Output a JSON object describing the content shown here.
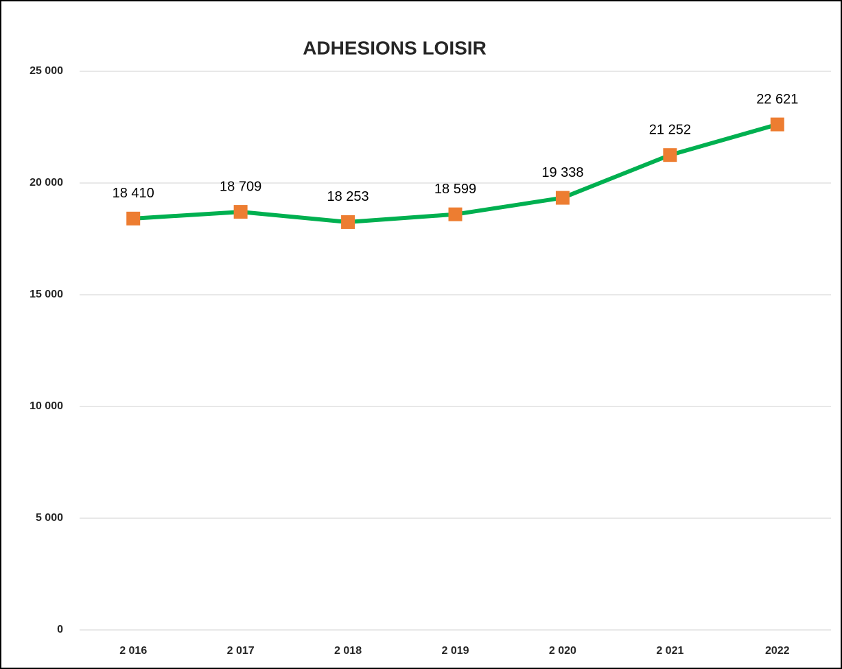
{
  "chart_data": {
    "type": "line",
    "title": "ADHESIONS LOISIR",
    "categories": [
      "2 016",
      "2 017",
      "2 018",
      "2 019",
      "2 020",
      "2 021",
      "2022"
    ],
    "series": [
      {
        "name": "Adhésions",
        "color": "#00b050",
        "marker_color": "#ed7d31",
        "values": [
          18410,
          18709,
          18253,
          18599,
          19338,
          21252,
          22621
        ],
        "value_labels": [
          "18 410",
          "18 709",
          "18 253",
          "18 599",
          "19 338",
          "21 252",
          "22 621"
        ]
      }
    ],
    "ylim": [
      0,
      25000
    ],
    "yticks": [
      0,
      {
        "value": 5000,
        "label": "5 000"
      },
      {
        "value": 10000,
        "label": "10 000"
      },
      {
        "value": 15000,
        "label": "15 000"
      },
      {
        "value": 20000,
        "label": "20 000"
      },
      {
        "value": 25000,
        "label": "25 000"
      }
    ],
    "grid": true
  }
}
